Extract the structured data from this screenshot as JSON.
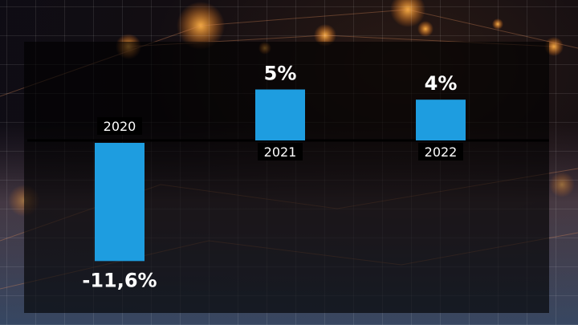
{
  "chart_data": {
    "type": "bar",
    "categories": [
      "2020",
      "2021",
      "2022"
    ],
    "values": [
      -11.6,
      5,
      4
    ],
    "value_labels": [
      "-11,6%",
      "5%",
      "4%"
    ],
    "bar_color": "#1e9de0",
    "background": "dark city network photo with orange bokeh lights and a faint grid",
    "title": "",
    "xlabel": "",
    "ylabel": ""
  }
}
